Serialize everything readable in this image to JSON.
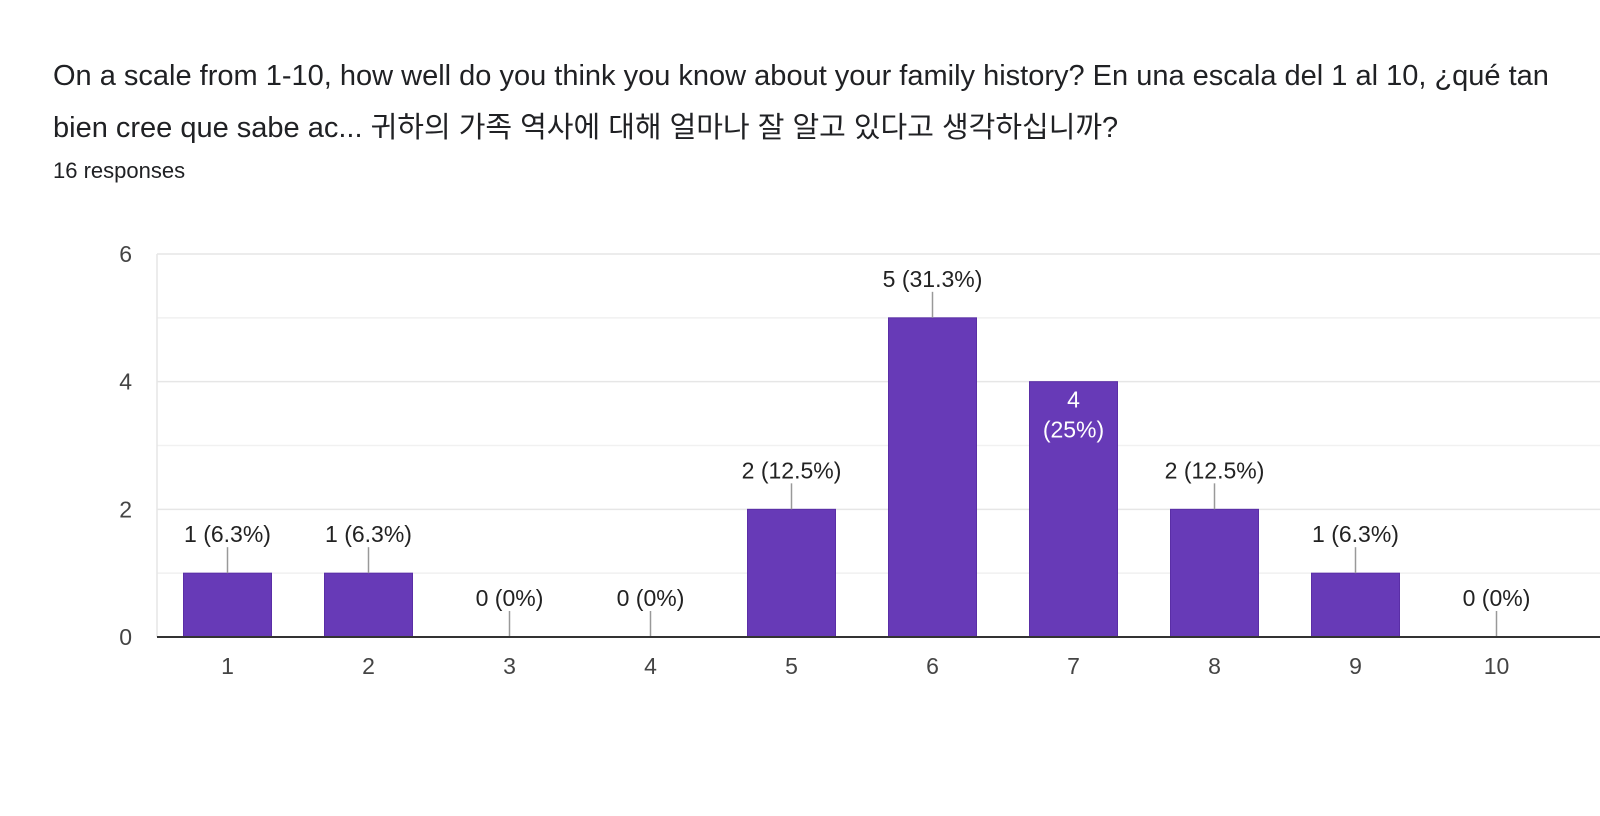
{
  "question": {
    "title": "On a scale from 1-10, how well do you think you know about your family history? En una escala del 1 al 10, ¿qué tan bien cree que sabe ac... 귀하의 가족 역사에 대해 얼마나 잘 알고 있다고 생각하십니까?",
    "responses_label": "16 responses"
  },
  "colors": {
    "bar": "#673ab7",
    "grid": "#e6e6e6",
    "axis": "#333333",
    "leader": "#999999"
  },
  "chart_data": {
    "type": "bar",
    "title": "",
    "xlabel": "",
    "ylabel": "",
    "categories": [
      "1",
      "2",
      "3",
      "4",
      "5",
      "6",
      "7",
      "8",
      "9",
      "10"
    ],
    "values": [
      1,
      1,
      0,
      0,
      2,
      5,
      4,
      2,
      1,
      0
    ],
    "data_labels": [
      "1 (6.3%)",
      "1 (6.3%)",
      "0 (0%)",
      "0 (0%)",
      "2 (12.5%)",
      "5 (31.3%)",
      "4 (25%)",
      "2 (12.5%)",
      "1 (6.3%)",
      "0 (0%)"
    ],
    "ylim": [
      0,
      6
    ],
    "yticks": [
      0,
      2,
      4,
      6
    ],
    "minor_gridlines": [
      1,
      3,
      5
    ],
    "grid": true,
    "legend": "none"
  }
}
